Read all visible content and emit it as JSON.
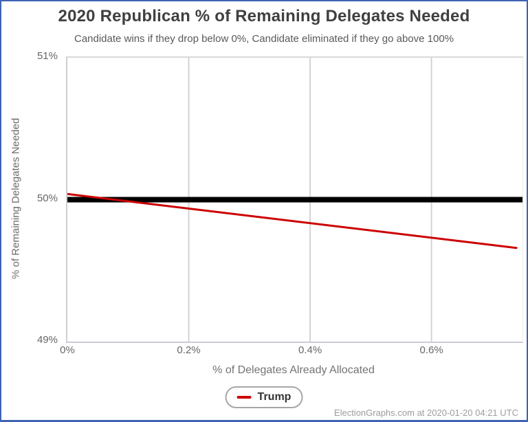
{
  "chart_data": {
    "type": "line",
    "title": "2020 Republican % of Remaining Delegates Needed",
    "subtitle": "Candidate wins if they drop below 0%, Candidate eliminated if they go above 100%",
    "xlabel": "% of Delegates Already Allocated",
    "ylabel": "% of Remaining Delegates Needed",
    "xlim": [
      0,
      0.75
    ],
    "ylim": [
      49,
      51
    ],
    "x_ticks": [
      {
        "value": 0,
        "label": "0%"
      },
      {
        "value": 0.2,
        "label": "0.2%"
      },
      {
        "value": 0.4,
        "label": "0.4%"
      },
      {
        "value": 0.6,
        "label": "0.6%"
      }
    ],
    "y_ticks": [
      {
        "value": 49,
        "label": "49%"
      },
      {
        "value": 50,
        "label": "50%"
      },
      {
        "value": 51,
        "label": "51%"
      }
    ],
    "grid": "vertical-only",
    "legend_position": "bottom-center",
    "reference_line": {
      "y": 50,
      "color": "#000000",
      "width": 8
    },
    "series": [
      {
        "name": "Trump",
        "color": "#cc0000",
        "width": 3,
        "points": [
          {
            "x": 0,
            "y": 50.04
          },
          {
            "x": 0.74,
            "y": 49.66
          }
        ]
      }
    ]
  },
  "footer": {
    "attribution": "ElectionGraphs.com at 2020-01-20 04:21 UTC"
  },
  "colors": {
    "frame_border": "#3f63b5",
    "gridline": "#d3d3d3",
    "title_text": "#404040",
    "subtitle_text": "#595959",
    "axis_text": "#666666",
    "trump_line": "#cc0000",
    "reference_line": "#000000",
    "attribution_text": "#9c9c9c"
  }
}
